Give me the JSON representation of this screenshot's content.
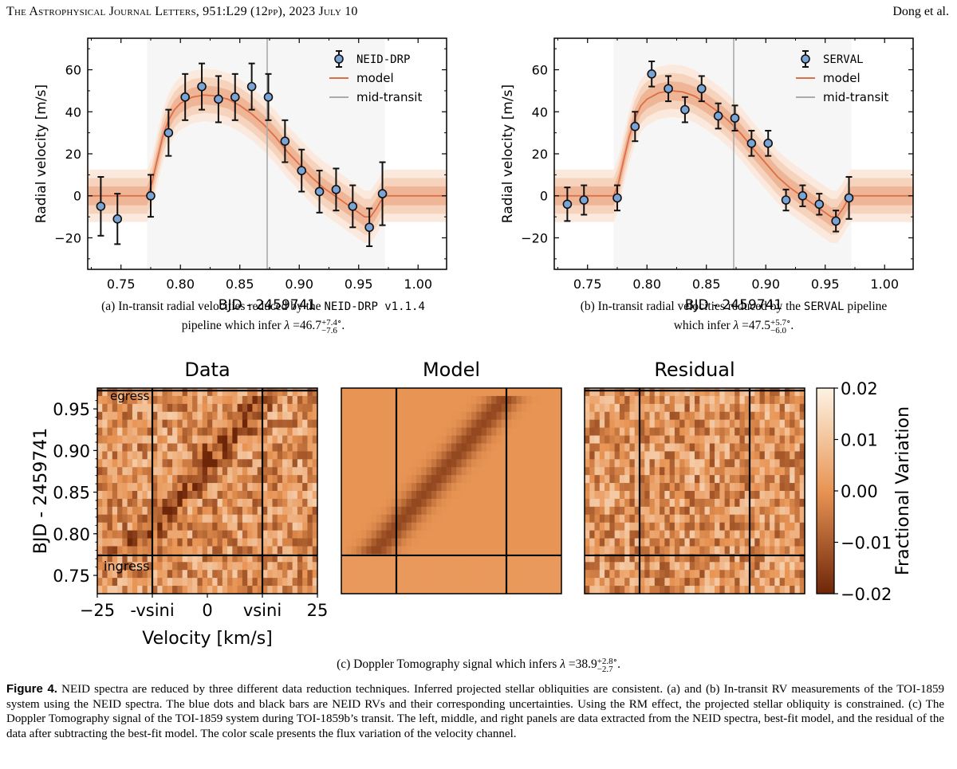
{
  "header": {
    "journal": "The Astrophysical Journal Letters, 951:L29 (12pp), 2023 July 10",
    "authors": "Dong et al."
  },
  "panel_a": {
    "legend": [
      "NEID-DRP",
      "model",
      "mid-transit"
    ],
    "caption_prefix": "(a) In-transit radial velocities reduced by the",
    "caption_code": "NEID-DRP v1.1.4",
    "caption_line2_prefix": "pipeline which infer",
    "lambda_value": "46.7",
    "lambda_plus": "+7.4",
    "lambda_minus": "−7.6",
    "degree": "∘",
    "period": "."
  },
  "panel_b": {
    "legend": [
      "SERVAL",
      "model",
      "mid-transit"
    ],
    "caption_prefix": "(b) In-transit radial velocities reduced by the",
    "caption_code": "SERVAL",
    "caption_suffix": "pipeline",
    "caption_line2_prefix": "which infer",
    "lambda_value": "47.5",
    "lambda_plus": "+5.7",
    "lambda_minus": "−6.0",
    "degree": "∘",
    "period": "."
  },
  "panel_c": {
    "titles": [
      "Data",
      "Model",
      "Residual"
    ],
    "ylabel": "BJD - 2459741",
    "xlabel": "Velocity [km/s]",
    "xticks": [
      "−25",
      "-vsini",
      "0",
      "vsini",
      "25"
    ],
    "yticks": [
      "0.95",
      "0.90",
      "0.85",
      "0.80",
      "0.75"
    ],
    "annotations": [
      "egress",
      "ingress"
    ],
    "colorbar_label": "Fractional Variation",
    "colorbar_ticks": [
      "0.02",
      "0.01",
      "0.00",
      "−0.01",
      "−0.02"
    ],
    "caption_prefix": "(c) Doppler Tomography signal which infers",
    "lambda_value": "38.9",
    "lambda_plus": "+2.8",
    "lambda_minus": "−2.7",
    "degree": "∘",
    "period": "."
  },
  "figure_caption": {
    "label": "Figure 4.",
    "text": "NEID spectra are reduced by three different data reduction techniques. Inferred projected stellar obliquities are consistent. (a) and (b) In-transit RV measurements of the TOI-1859 system using the NEID spectra. The blue dots and black bars are NEID RVs and their corresponding uncertainties. Using the RM effect, the projected stellar obliquity is constrained. (c) The Doppler Tomography signal of the TOI-1859 system during TOI-1859b’s transit. The left, middle, and right panels are data extracted from the NEID spectra, best-fit model, and the residual of the data after subtracting the best-fit model. The color scale presents the flux variation of the velocity channel."
  },
  "chart_data": [
    {
      "type": "scatter",
      "name": "panel-a",
      "xlabel": "BJD - 2459741",
      "ylabel": "Radial velocity [m/s]",
      "xlim": [
        0.722,
        1.024
      ],
      "ylim": [
        -35,
        75
      ],
      "xticks": [
        0.75,
        0.8,
        0.85,
        0.9,
        0.95,
        1.0
      ],
      "xtick_labels": [
        "0.75",
        "0.80",
        "0.85",
        "0.90",
        "0.95",
        "1.00"
      ],
      "yticks": [
        -20,
        0,
        20,
        40,
        60
      ],
      "ytick_labels": [
        "−20",
        "0",
        "20",
        "40",
        "60"
      ],
      "mid_transit": 0.873,
      "transit_window": [
        0.772,
        0.972
      ],
      "series": [
        {
          "name": "NEID-DRP",
          "x": [
            0.733,
            0.747,
            0.775,
            0.79,
            0.804,
            0.818,
            0.832,
            0.846,
            0.86,
            0.874,
            0.888,
            0.902,
            0.917,
            0.931,
            0.945,
            0.959,
            0.97
          ],
          "y": [
            -5,
            -11,
            0,
            30,
            47,
            52,
            46,
            47,
            52,
            47,
            26,
            12,
            2,
            3,
            -5,
            -15,
            1
          ],
          "err": [
            14,
            12,
            10,
            11,
            11,
            11,
            11,
            11,
            11,
            11,
            10,
            10,
            10,
            10,
            10,
            9,
            15
          ]
        }
      ],
      "model": {
        "x": [
          0.722,
          0.772,
          0.776,
          0.78,
          0.785,
          0.79,
          0.795,
          0.8,
          0.81,
          0.82,
          0.83,
          0.84,
          0.85,
          0.86,
          0.87,
          0.88,
          0.89,
          0.9,
          0.91,
          0.92,
          0.93,
          0.94,
          0.95,
          0.955,
          0.96,
          0.965,
          0.968,
          0.972,
          1.024
        ],
        "y": [
          0,
          0,
          6,
          16,
          28,
          36,
          41,
          44,
          47,
          48,
          47.5,
          46,
          43,
          39,
          34,
          28,
          21,
          15,
          9,
          4,
          0,
          -4,
          -8,
          -10,
          -10,
          -6,
          -3,
          0,
          0
        ]
      }
    },
    {
      "type": "scatter",
      "name": "panel-b",
      "xlabel": "BJD - 2459741",
      "ylabel": "Radial velocity [m/s]",
      "xlim": [
        0.722,
        1.024
      ],
      "ylim": [
        -35,
        75
      ],
      "xticks": [
        0.75,
        0.8,
        0.85,
        0.9,
        0.95,
        1.0
      ],
      "xtick_labels": [
        "0.75",
        "0.80",
        "0.85",
        "0.90",
        "0.95",
        "1.00"
      ],
      "yticks": [
        -20,
        0,
        20,
        40,
        60
      ],
      "ytick_labels": [
        "−20",
        "0",
        "20",
        "40",
        "60"
      ],
      "mid_transit": 0.873,
      "transit_window": [
        0.772,
        0.972
      ],
      "series": [
        {
          "name": "SERVAL",
          "x": [
            0.733,
            0.747,
            0.775,
            0.79,
            0.804,
            0.818,
            0.832,
            0.846,
            0.86,
            0.874,
            0.888,
            0.902,
            0.917,
            0.931,
            0.945,
            0.959,
            0.97
          ],
          "y": [
            -4,
            -2,
            -1,
            33,
            58,
            51,
            41,
            51,
            38,
            37,
            25,
            25,
            -2,
            0,
            -4,
            -12,
            -1
          ],
          "err": [
            8,
            7,
            6,
            7,
            6,
            6,
            6,
            6,
            6,
            6,
            6,
            6,
            5,
            5,
            5,
            5,
            10
          ]
        }
      ],
      "model": {
        "x": [
          0.722,
          0.772,
          0.776,
          0.78,
          0.785,
          0.79,
          0.795,
          0.8,
          0.81,
          0.82,
          0.83,
          0.84,
          0.85,
          0.86,
          0.87,
          0.88,
          0.89,
          0.9,
          0.91,
          0.92,
          0.93,
          0.94,
          0.95,
          0.955,
          0.96,
          0.965,
          0.968,
          0.972,
          1.024
        ],
        "y": [
          0,
          0,
          6,
          16,
          28,
          37,
          43,
          46,
          49,
          50,
          49.5,
          47.5,
          44,
          40,
          35,
          29,
          22,
          15.5,
          9,
          4,
          0,
          -4,
          -8,
          -10,
          -10,
          -6,
          -3,
          0,
          0
        ]
      }
    },
    {
      "type": "heatmap",
      "name": "doppler-tomography",
      "panels": [
        "Data",
        "Model",
        "Residual"
      ],
      "xlabel": "Velocity [km/s]",
      "ylabel": "BJD - 2459741",
      "xlim": [
        -25,
        25
      ],
      "ylim": [
        0.728,
        0.975
      ],
      "vsini": 12.5,
      "ingress": 0.774,
      "egress": 0.972,
      "clim": [
        -0.02,
        0.02
      ],
      "colorbar_label": "Fractional Variation"
    }
  ]
}
